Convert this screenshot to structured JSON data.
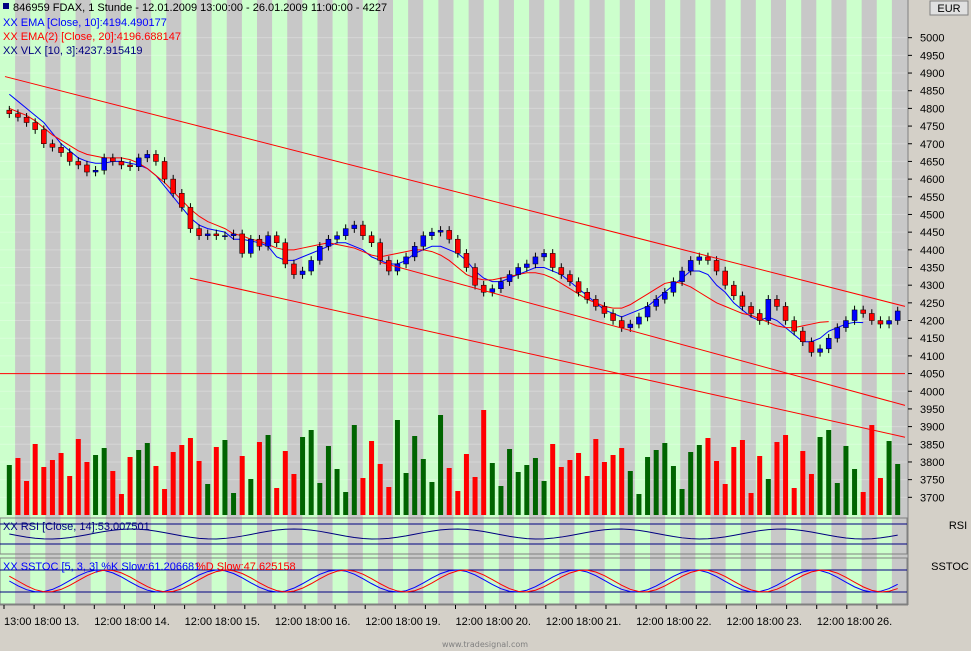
{
  "header": {
    "title": "846959  FDAX, 1 Stunde - 12.01.2009 13:00:00 - 26.01.2009 11:00:00 - 4227",
    "legend_ema10": "XX EMA [Close, 10]:4194.490177",
    "legend_ema20": "XX EMA(2) [Close, 20]:4196.688147",
    "legend_vlx": "XX VLX [10, 3]:4237.915419",
    "currency": "EUR"
  },
  "rsi": {
    "label": "XX RSI [Close, 14]:53.007501",
    "axis_label": "RSI"
  },
  "sstoc": {
    "label_k": "XX SSTOC [5, 3, 3] %K Slow:61.206681",
    "label_d": "%D Slow:47.625158",
    "axis_label": "SSTOC"
  },
  "footer": {
    "watermark": "www.tradesignal.com"
  },
  "colors": {
    "bg_light": "#ccffcc",
    "bg_dark": "#c8c8c8",
    "up_candle": "#0000ff",
    "down_candle": "#ff0000",
    "ema10": "#0000ff",
    "ema20": "#ff0000",
    "channel": "#ff0000",
    "vol_up": "#006400",
    "vol_down": "#ff0000"
  },
  "chart_data": {
    "type": "candlestick",
    "title": "846959  FDAX, 1 Stunde - 12.01.2009 13:00:00 - 26.01.2009 11:00:00 - 4227",
    "y_ticks": [
      "5000",
      "4950",
      "4900",
      "4850",
      "4800",
      "4750",
      "4700",
      "4650",
      "4600",
      "4550",
      "4500",
      "4450",
      "4400",
      "4350",
      "4300",
      "4250",
      "4200",
      "4150",
      "4100",
      "4050",
      "4000",
      "3950",
      "3900",
      "3850",
      "3800",
      "3750",
      "3700"
    ],
    "y_range": [
      3650,
      5050
    ],
    "x_tick_labels": [
      "13:00",
      "18:00",
      "13.",
      "12:00",
      "18:00",
      "14.",
      "12:00",
      "18:00",
      "15.",
      "12:00",
      "18:00",
      "16.",
      "12:00",
      "18:00",
      "19.",
      "12:00",
      "18:00",
      "20.",
      "12:00",
      "18:00",
      "21.",
      "12:00",
      "18:00",
      "22.",
      "12:00",
      "18:00",
      "23.",
      "12:00",
      "18:00",
      "26."
    ],
    "series": [
      {
        "name": "Close",
        "values": [
          4785,
          4775,
          4760,
          4740,
          4700,
          4690,
          4675,
          4650,
          4640,
          4620,
          4625,
          4660,
          4650,
          4640,
          4635,
          4660,
          4670,
          4650,
          4600,
          4560,
          4520,
          4460,
          4440,
          4445,
          4440,
          4440,
          4445,
          4390,
          4430,
          4410,
          4440,
          4420,
          4360,
          4330,
          4340,
          4370,
          4410,
          4430,
          4440,
          4460,
          4470,
          4440,
          4420,
          4370,
          4340,
          4360,
          4380,
          4410,
          4440,
          4450,
          4455,
          4430,
          4390,
          4350,
          4300,
          4280,
          4290,
          4310,
          4330,
          4350,
          4360,
          4380,
          4390,
          4350,
          4330,
          4310,
          4280,
          4260,
          4240,
          4220,
          4200,
          4180,
          4190,
          4210,
          4240,
          4260,
          4280,
          4310,
          4340,
          4370,
          4380,
          4370,
          4340,
          4300,
          4270,
          4240,
          4220,
          4200,
          4260,
          4240,
          4200,
          4170,
          4140,
          4110,
          4120,
          4150,
          4180,
          4200,
          4230,
          4220,
          4200,
          4190,
          4200,
          4227
        ]
      },
      {
        "name": "EMA [Close, 10]",
        "values": [
          4840,
          4820,
          4800,
          4780,
          4760,
          4730,
          4700,
          4680,
          4660,
          4650,
          4645,
          4645,
          4650,
          4650,
          4645,
          4640,
          4630,
          4610,
          4580,
          4550,
          4520,
          4490,
          4470,
          4460,
          4455,
          4450,
          4430,
          4430,
          4425,
          4420,
          4410,
          4380,
          4370,
          4370,
          4380,
          4390,
          4400,
          4410,
          4420,
          4420,
          4410,
          4400,
          4380,
          4370,
          4360,
          4360,
          4370,
          4390,
          4400,
          4410,
          4410,
          4400,
          4390,
          4370,
          4340,
          4320,
          4310,
          4310,
          4320,
          4330,
          4340,
          4350,
          4350,
          4340,
          4330,
          4310,
          4290,
          4270,
          4250,
          4230,
          4220,
          4210,
          4220,
          4230,
          4240,
          4260,
          4280,
          4300,
          4320,
          4340,
          4340,
          4330,
          4300,
          4280,
          4250,
          4230,
          4210,
          4200,
          4210,
          4200,
          4180,
          4160,
          4140,
          4140,
          4150,
          4170,
          4180,
          4190,
          4195,
          4194
        ]
      },
      {
        "name": "EMA(2) [Close, 20]",
        "values": [
          4800,
          4790,
          4780,
          4765,
          4745,
          4725,
          4710,
          4695,
          4680,
          4670,
          4665,
          4660,
          4660,
          4660,
          4655,
          4645,
          4630,
          4610,
          4590,
          4565,
          4540,
          4515,
          4495,
          4480,
          4470,
          4460,
          4445,
          4440,
          4430,
          4425,
          4415,
          4405,
          4400,
          4400,
          4405,
          4410,
          4415,
          4420,
          4415,
          4410,
          4405,
          4395,
          4385,
          4380,
          4385,
          4390,
          4395,
          4400,
          4400,
          4395,
          4385,
          4370,
          4350,
          4330,
          4320,
          4315,
          4315,
          4320,
          4325,
          4330,
          4335,
          4335,
          4330,
          4320,
          4305,
          4290,
          4275,
          4260,
          4250,
          4240,
          4235,
          4235,
          4245,
          4260,
          4275,
          4290,
          4305,
          4310,
          4305,
          4295,
          4280,
          4265,
          4250,
          4240,
          4230,
          4220,
          4215,
          4205,
          4195,
          4185,
          4180,
          4180,
          4185,
          4190,
          4195,
          4197
        ]
      }
    ],
    "ylim": [
      3650,
      5050
    ],
    "annotations": {
      "upper_channel_price": [
        4890,
        4240
      ],
      "middle_channel_price": [
        4365,
        3960
      ],
      "lower_channel_price": [
        4320,
        3870
      ],
      "support_level": 4050
    },
    "grid": true,
    "legend": "top-left"
  }
}
